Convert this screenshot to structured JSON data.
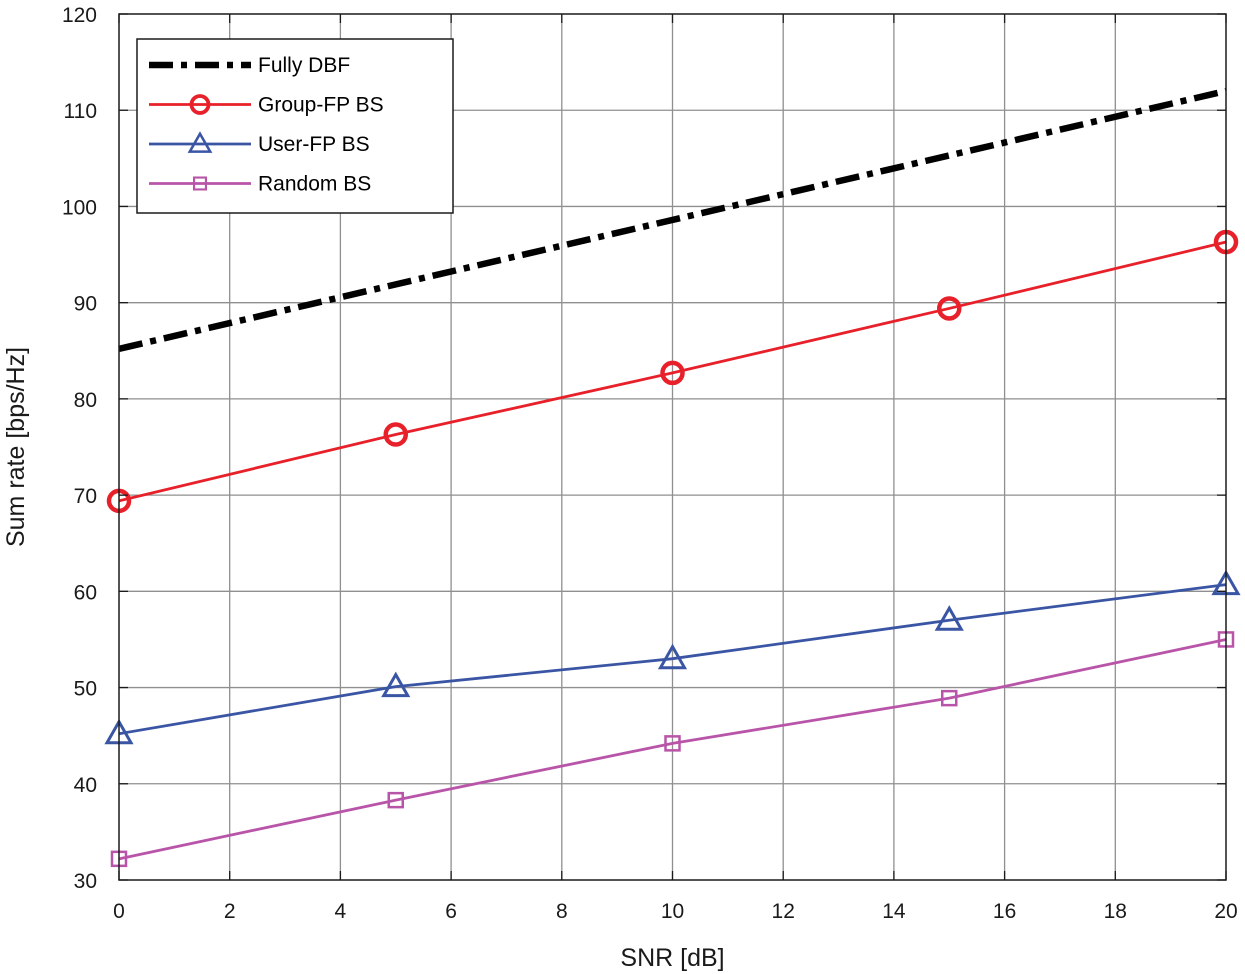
{
  "chart_data": {
    "type": "line",
    "title": "",
    "xlabel": "SNR [dB]",
    "ylabel": "Sum rate [bps/Hz]",
    "xlim": [
      0,
      20
    ],
    "ylim": [
      30,
      120
    ],
    "xticks": [
      0,
      2,
      4,
      6,
      8,
      10,
      12,
      14,
      16,
      18,
      20
    ],
    "yticks": [
      30,
      40,
      50,
      60,
      70,
      80,
      90,
      100,
      110,
      120
    ],
    "grid": true,
    "legend_location": "top-left",
    "series": [
      {
        "name": "Fully DBF",
        "x": [
          0,
          20
        ],
        "values": [
          85.2,
          112.0
        ],
        "color": "#000000",
        "line_style": "dash-dot",
        "marker": "none"
      },
      {
        "name": "Group-FP BS",
        "x": [
          0,
          5,
          10,
          15,
          20
        ],
        "values": [
          69.4,
          76.3,
          82.7,
          89.4,
          96.3
        ],
        "color": "#e8202a",
        "line_style": "solid",
        "marker": "circle"
      },
      {
        "name": "User-FP BS",
        "x": [
          0,
          5,
          10,
          15,
          20
        ],
        "values": [
          45.2,
          50.1,
          53.0,
          57.0,
          60.7
        ],
        "color": "#3a55a4",
        "line_style": "solid",
        "marker": "triangle"
      },
      {
        "name": "Random BS",
        "x": [
          0,
          5,
          10,
          15,
          20
        ],
        "values": [
          32.2,
          38.3,
          44.2,
          48.9,
          55.0
        ],
        "color": "#b955a8",
        "line_style": "solid",
        "marker": "square"
      }
    ]
  }
}
